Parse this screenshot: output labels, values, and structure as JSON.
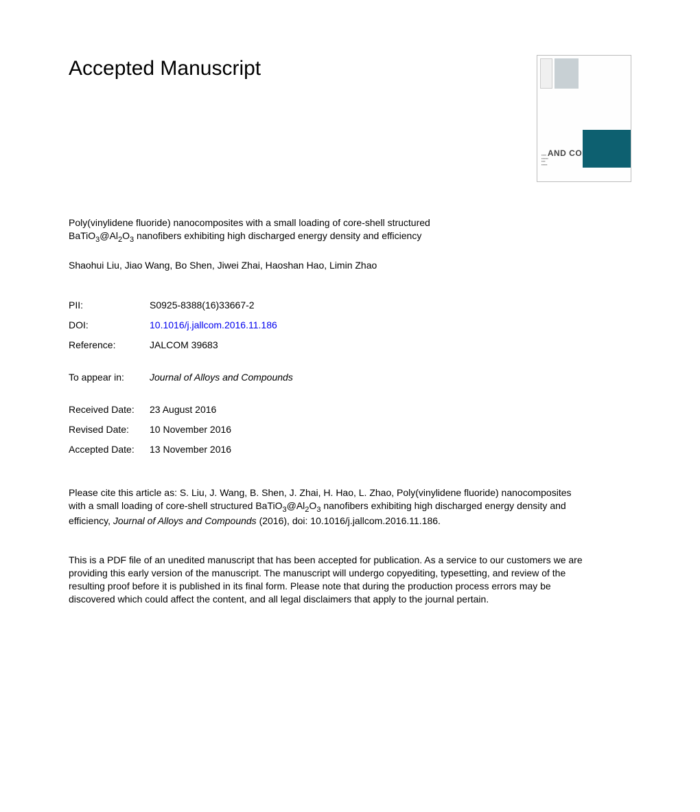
{
  "heading": "Accepted Manuscript",
  "cover": {
    "journal_prefix": "Journal of",
    "journal_line1": "ALLOYS",
    "journal_line2": "AND COMPOUNDS",
    "accent_color": "#0d6070",
    "band_color": "#c8d0d4"
  },
  "article": {
    "title_pre": "Poly(vinylidene fluoride) nanocomposites with a small loading of core-shell structured BaTiO",
    "title_sub1": "3",
    "title_mid1": "@Al",
    "title_sub2": "2",
    "title_mid2": "O",
    "title_sub3": "3",
    "title_post": " nanofibers exhibiting high discharged energy density and efficiency",
    "authors": "Shaohui Liu, Jiao Wang, Bo Shen, Jiwei Zhai, Haoshan Hao, Limin Zhao"
  },
  "meta": {
    "pii_label": "PII:",
    "pii_value": "S0925-8388(16)33667-2",
    "doi_label": "DOI:",
    "doi_value": "10.1016/j.jallcom.2016.11.186",
    "ref_label": "Reference:",
    "ref_value": "JALCOM 39683",
    "appear_label": "To appear in:",
    "appear_value": "Journal of Alloys and Compounds",
    "received_label": "Received Date:",
    "received_value": "23 August 2016",
    "revised_label": "Revised Date:",
    "revised_value": "10 November 2016",
    "accepted_label": "Accepted Date:",
    "accepted_value": "13 November 2016"
  },
  "citation": {
    "pre": "Please cite this article as: S. Liu, J. Wang, B. Shen, J. Zhai, H. Hao, L. Zhao, Poly(vinylidene fluoride) nanocomposites with a small loading of core-shell structured BaTiO",
    "s1": "3",
    "m1": "@Al",
    "s2": "2",
    "m2": "O",
    "s3": "3",
    "mid": " nanofibers exhibiting high discharged energy density and efficiency, ",
    "journal": "Journal of Alloys and Compounds",
    "post": " (2016), doi: 10.1016/j.jallcom.2016.11.186."
  },
  "disclaimer": "This is a PDF file of an unedited manuscript that has been accepted for publication. As a service to our customers we are providing this early version of the manuscript. The manuscript will undergo copyediting, typesetting, and review of the resulting proof before it is published in its final form. Please note that during the production process errors may be discovered which could affect the content, and all legal disclaimers that apply to the journal pertain."
}
